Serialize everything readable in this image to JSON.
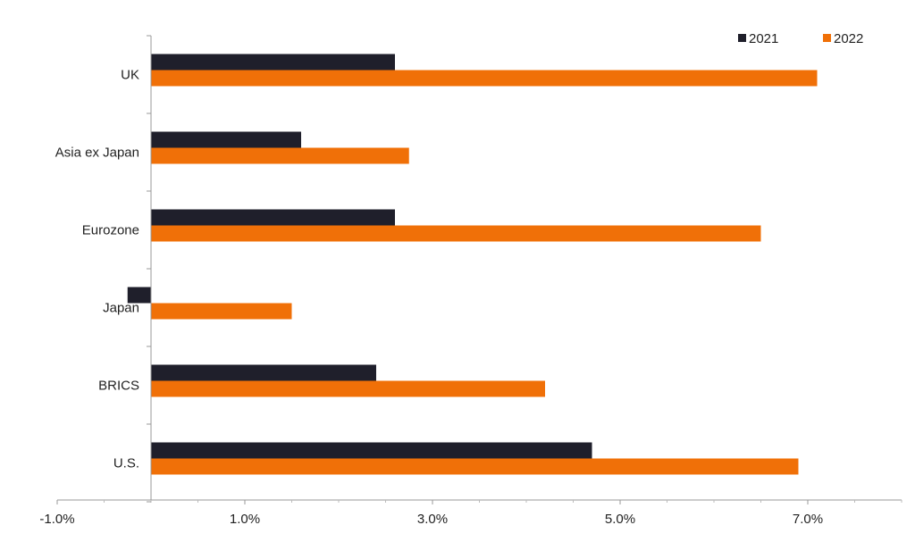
{
  "chart_data": {
    "type": "bar",
    "orientation": "horizontal",
    "title": "",
    "xlabel": "",
    "ylabel": "",
    "categories": [
      "UK",
      "Asia ex Japan",
      "Eurozone",
      "Japan",
      "BRICS",
      "U.S."
    ],
    "series": [
      {
        "name": "2021",
        "color": "#1f1f2b",
        "values": [
          2.6,
          1.6,
          2.6,
          -0.25,
          2.4,
          4.7
        ]
      },
      {
        "name": "2022",
        "color": "#f07008",
        "values": [
          7.1,
          2.75,
          6.5,
          1.5,
          4.2,
          6.9
        ]
      }
    ],
    "xlim": [
      -1.0,
      8.0
    ],
    "xticks": [
      -1.0,
      1.0,
      3.0,
      5.0,
      7.0
    ],
    "xtick_labels": [
      "-1.0%",
      "1.0%",
      "3.0%",
      "5.0%",
      "7.0%"
    ],
    "grid": false,
    "legend_position": "top-right"
  }
}
